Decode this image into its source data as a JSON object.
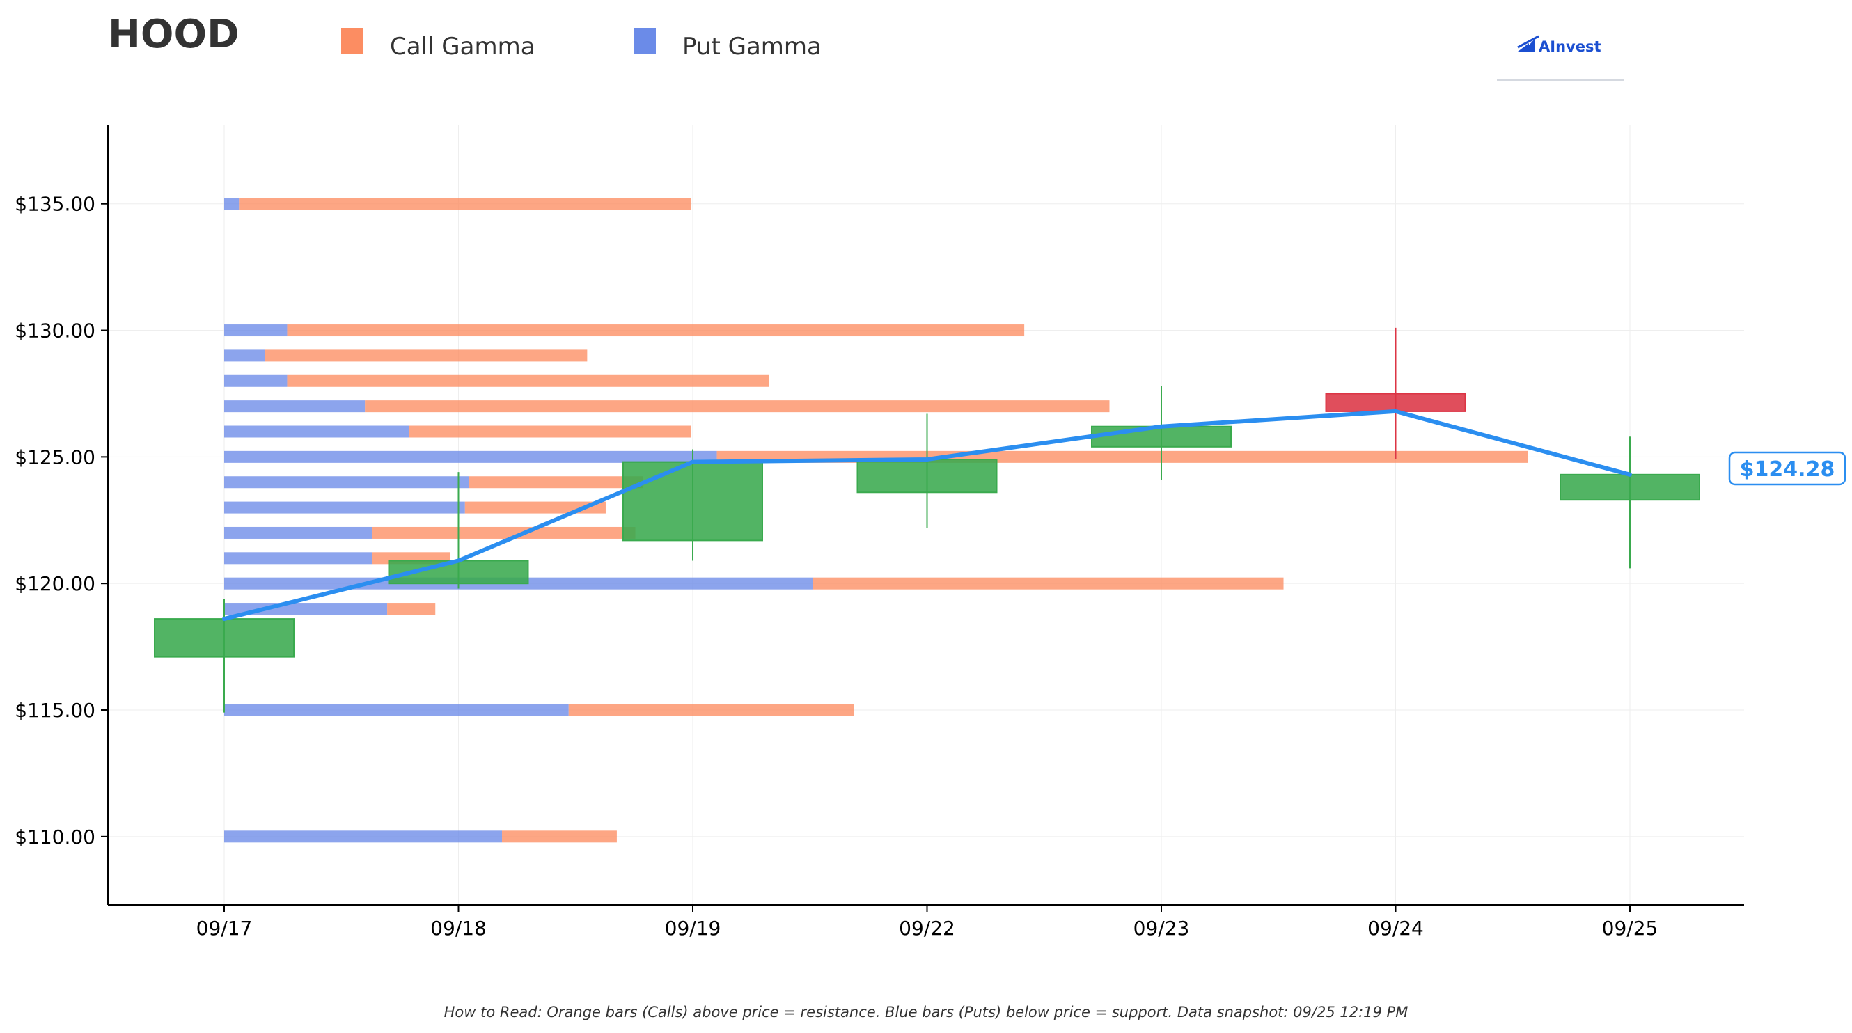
{
  "colors": {
    "call": "#fc8d62",
    "put": "#6b8be8",
    "up_candle": "#3aaa4e",
    "down_candle": "#dc3545",
    "price_line": "#2b8ef0"
  },
  "logo": {
    "text": "AInvest",
    "icon": "chart-arrow-icon"
  },
  "chart_data": {
    "type": "candlestick_with_horizontal_bars",
    "title": "HOOD",
    "legend": [
      {
        "key": "call",
        "label": "Call Gamma"
      },
      {
        "key": "put",
        "label": "Put Gamma"
      }
    ],
    "legend_position": "top",
    "x_categories": [
      "09/17",
      "09/18",
      "09/19",
      "09/22",
      "09/23",
      "09/24",
      "09/25"
    ],
    "y_ticks": [
      {
        "value": 110,
        "label": "$110.00"
      },
      {
        "value": 115,
        "label": "$115.00"
      },
      {
        "value": 120,
        "label": "$120.00"
      },
      {
        "value": 125,
        "label": "$125.00"
      },
      {
        "value": 130,
        "label": "$130.00"
      },
      {
        "value": 135,
        "label": "$135.00"
      }
    ],
    "ylim": [
      107.3,
      138.1
    ],
    "grid": true,
    "candles": [
      {
        "date": "09/17",
        "open": 117.1,
        "close": 118.6,
        "high": 119.4,
        "low": 114.9
      },
      {
        "date": "09/18",
        "open": 120.0,
        "close": 120.9,
        "high": 124.4,
        "low": 119.8
      },
      {
        "date": "09/19",
        "open": 121.7,
        "close": 124.8,
        "high": 125.3,
        "low": 120.9
      },
      {
        "date": "09/22",
        "open": 123.6,
        "close": 124.9,
        "high": 126.7,
        "low": 122.2
      },
      {
        "date": "09/23",
        "open": 125.4,
        "close": 126.2,
        "high": 127.8,
        "low": 124.1
      },
      {
        "date": "09/24",
        "open": 127.5,
        "close": 126.8,
        "high": 130.1,
        "low": 124.9
      },
      {
        "date": "09/25",
        "open": 123.3,
        "close": 124.3,
        "high": 125.8,
        "low": 120.6
      }
    ],
    "price_line": [
      118.6,
      120.9,
      124.8,
      124.9,
      126.2,
      126.8,
      124.3
    ],
    "current_price_label": "$124.28",
    "gamma_levels": [
      {
        "strike": 110,
        "put": 0.75,
        "call": 0.31
      },
      {
        "strike": 115,
        "put": 0.93,
        "call": 0.77
      },
      {
        "strike": 119,
        "put": 0.44,
        "call": 0.13
      },
      {
        "strike": 120,
        "put": 1.59,
        "call": 1.27
      },
      {
        "strike": 121,
        "put": 0.4,
        "call": 0.21
      },
      {
        "strike": 122,
        "put": 0.4,
        "call": 0.71
      },
      {
        "strike": 123,
        "put": 0.65,
        "call": 0.38
      },
      {
        "strike": 124,
        "put": 0.66,
        "call": 0.47
      },
      {
        "strike": 125,
        "put": 1.33,
        "call": 2.19
      },
      {
        "strike": 126,
        "put": 0.5,
        "call": 0.76
      },
      {
        "strike": 127,
        "put": 0.38,
        "call": 2.01
      },
      {
        "strike": 128,
        "put": 0.17,
        "call": 1.3
      },
      {
        "strike": 129,
        "put": 0.11,
        "call": 0.87
      },
      {
        "strike": 130,
        "put": 0.17,
        "call": 1.99
      },
      {
        "strike": 135,
        "put": 0.04,
        "call": 1.22
      }
    ]
  },
  "footnote": "How to Read: Orange bars (Calls) above price = resistance. Blue bars (Puts) below price = support. Data snapshot: 09/25 12:19 PM"
}
